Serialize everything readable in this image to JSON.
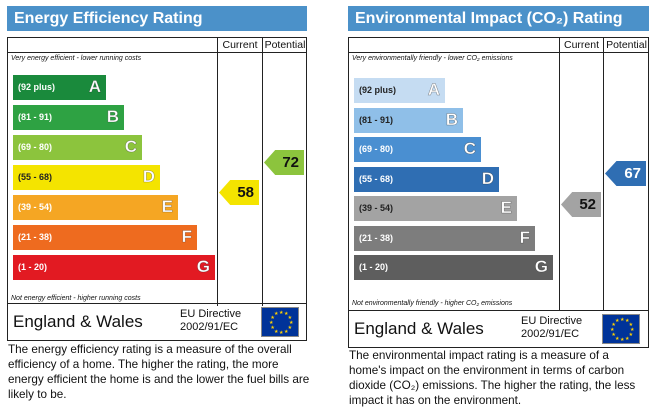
{
  "energy": {
    "title": "Energy Efficiency Rating",
    "col_current": "Current",
    "col_potential": "Potential",
    "top_note": "Very energy efficient - lower running costs",
    "bottom_note": "Not energy efficient - higher running costs",
    "bands": [
      {
        "range": "(92 plus)",
        "letter": "A",
        "color": "#1a8a3c"
      },
      {
        "range": "(81 - 91)",
        "letter": "B",
        "color": "#2ea243"
      },
      {
        "range": "(69 - 80)",
        "letter": "C",
        "color": "#8cc43d"
      },
      {
        "range": "(55 - 68)",
        "letter": "D",
        "color": "#f4e400"
      },
      {
        "range": "(39 - 54)",
        "letter": "E",
        "color": "#f5a623"
      },
      {
        "range": "(21 - 38)",
        "letter": "F",
        "color": "#ee6b1f"
      },
      {
        "range": "(1 - 20)",
        "letter": "G",
        "color": "#e21a22"
      }
    ],
    "current_value": "58",
    "current_color": "#f4e400",
    "potential_value": "72",
    "potential_color": "#8cc43d",
    "country": "England & Wales",
    "directive_line1": "EU Directive",
    "directive_line2": "2002/91/EC",
    "description": "The energy efficiency rating is a measure of the overall efficiency of a home. The higher the rating, the more energy efficient the home is and the lower the fuel bills are likely to be."
  },
  "environment": {
    "title": "Environmental Impact (CO₂) Rating",
    "col_current": "Current",
    "col_potential": "Potential",
    "top_note": "Very environmentally friendly - lower CO₂ emissions",
    "bottom_note": "Not environmentally friendly - higher CO₂ emissions",
    "bands": [
      {
        "range": "(92 plus)",
        "letter": "A",
        "color": "#c5dcf2"
      },
      {
        "range": "(81 - 91)",
        "letter": "B",
        "color": "#8fbfe8"
      },
      {
        "range": "(69 - 80)",
        "letter": "C",
        "color": "#4a8fd1"
      },
      {
        "range": "(55 - 68)",
        "letter": "D",
        "color": "#2f6eb3"
      },
      {
        "range": "(39 - 54)",
        "letter": "E",
        "color": "#a3a3a3"
      },
      {
        "range": "(21 - 38)",
        "letter": "F",
        "color": "#7d7d7d"
      },
      {
        "range": "(1 - 20)",
        "letter": "G",
        "color": "#5e5e5e"
      }
    ],
    "current_value": "52",
    "current_color": "#a3a3a3",
    "potential_value": "67",
    "potential_color": "#2f6eb3",
    "country": "England & Wales",
    "directive_line1": "EU Directive",
    "directive_line2": "2002/91/EC",
    "description": "The environmental impact rating is a measure of a home's impact on the environment in terms of carbon dioxide (CO₂) emissions. The higher the rating, the less impact it has on the environment."
  }
}
